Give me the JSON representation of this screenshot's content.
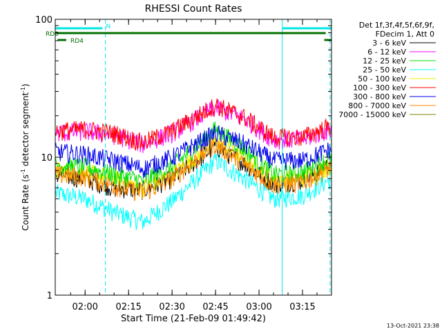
{
  "chart_data": {
    "type": "line",
    "title": "RHESSI Count Rates",
    "xlabel": "Start Time (21-Feb-09 01:49:42)",
    "ylabel": "Count Rate (s⁻¹ detector segment⁻¹)",
    "ylabel_parts": [
      "Count Rate (s",
      "-1",
      " detector segment",
      "-1",
      ")"
    ],
    "y_scale": "log",
    "ylim": [
      1,
      100
    ],
    "y_ticks": [
      {
        "value": 1,
        "label": "1"
      },
      {
        "value": 10,
        "label": "10"
      },
      {
        "value": 100,
        "label": "100"
      }
    ],
    "xlim": [
      "01:49:42",
      "03:25:00"
    ],
    "x_ticks": [
      "02:00",
      "02:15",
      "02:30",
      "02:45",
      "03:00",
      "03:15"
    ],
    "time_markers": {
      "solid": [
        "01:49:42",
        "03:08:00"
      ],
      "dashed": [
        "02:07:00",
        "03:24:30"
      ]
    },
    "flag_bars": [
      {
        "label": "N",
        "color": "#00e5e5",
        "intervals": [
          [
            "01:49:42",
            "02:06:00"
          ],
          [
            "03:08:00",
            "03:25:00"
          ]
        ]
      },
      {
        "label": "RD0",
        "color": "#007000",
        "intervals": [
          [
            "01:49:42",
            "03:23:00"
          ]
        ]
      },
      {
        "label": "RD4",
        "color": "#007000",
        "intervals": [
          [
            "01:50:30",
            "01:53:30"
          ],
          [
            "03:22:30",
            "03:25:00"
          ]
        ]
      }
    ],
    "legend": {
      "header": [
        "Det 1f,3f,4f,5f,6f,9f,",
        "FDecim 1, Att 0"
      ],
      "placement": "right"
    },
    "series": [
      {
        "name": "3 - 6 keV",
        "color": "#000000",
        "points": [
          [
            "01:50",
            7.5
          ],
          [
            "02:00",
            7.0
          ],
          [
            "02:10",
            6.0
          ],
          [
            "02:20",
            5.8
          ],
          [
            "02:30",
            7.0
          ],
          [
            "02:45",
            12.0
          ],
          [
            "02:55",
            9.0
          ],
          [
            "03:05",
            6.5
          ],
          [
            "03:15",
            6.8
          ],
          [
            "03:25",
            9.0
          ]
        ]
      },
      {
        "name": "6 - 12 keV",
        "color": "#ff00ff",
        "points": [
          [
            "01:50",
            15.0
          ],
          [
            "02:00",
            15.5
          ],
          [
            "02:10",
            14.5
          ],
          [
            "02:20",
            12.5
          ],
          [
            "02:30",
            15.0
          ],
          [
            "02:45",
            23.0
          ],
          [
            "02:55",
            19.0
          ],
          [
            "03:05",
            13.5
          ],
          [
            "03:15",
            13.5
          ],
          [
            "03:25",
            16.0
          ]
        ]
      },
      {
        "name": "12 - 25 keV",
        "color": "#00dd00",
        "points": [
          [
            "01:50",
            8.8
          ],
          [
            "02:00",
            8.5
          ],
          [
            "02:10",
            7.5
          ],
          [
            "02:20",
            6.8
          ],
          [
            "02:30",
            8.5
          ],
          [
            "02:45",
            16.0
          ],
          [
            "02:55",
            11.5
          ],
          [
            "03:05",
            7.5
          ],
          [
            "03:15",
            7.8
          ],
          [
            "03:25",
            10.0
          ]
        ]
      },
      {
        "name": "25 - 50 keV",
        "color": "#00ffff",
        "points": [
          [
            "01:50",
            5.5
          ],
          [
            "02:00",
            5.0
          ],
          [
            "02:10",
            4.0
          ],
          [
            "02:20",
            3.4
          ],
          [
            "02:30",
            4.8
          ],
          [
            "02:45",
            9.5
          ],
          [
            "02:55",
            7.0
          ],
          [
            "03:05",
            5.0
          ],
          [
            "03:15",
            5.3
          ],
          [
            "03:25",
            7.0
          ]
        ]
      },
      {
        "name": "50 - 100 keV",
        "color": "#f0f000",
        "points": [
          [
            "01:50",
            8.0
          ],
          [
            "02:00",
            7.8
          ],
          [
            "02:10",
            7.0
          ],
          [
            "02:20",
            6.0
          ],
          [
            "02:30",
            7.5
          ],
          [
            "02:45",
            13.0
          ],
          [
            "02:55",
            10.0
          ],
          [
            "03:05",
            7.0
          ],
          [
            "03:15",
            7.0
          ],
          [
            "03:25",
            8.8
          ]
        ]
      },
      {
        "name": "100 - 300 keV",
        "color": "#ff0000",
        "points": [
          [
            "01:50",
            15.5
          ],
          [
            "02:00",
            16.0
          ],
          [
            "02:10",
            15.0
          ],
          [
            "02:20",
            12.8
          ],
          [
            "02:30",
            15.5
          ],
          [
            "02:45",
            24.0
          ],
          [
            "02:55",
            19.5
          ],
          [
            "03:05",
            14.0
          ],
          [
            "03:15",
            14.0
          ],
          [
            "03:25",
            17.0
          ]
        ]
      },
      {
        "name": "300 - 800 keV",
        "color": "#0000ee",
        "points": [
          [
            "01:50",
            11.0
          ],
          [
            "02:00",
            10.5
          ],
          [
            "02:10",
            9.5
          ],
          [
            "02:20",
            8.3
          ],
          [
            "02:30",
            10.0
          ],
          [
            "02:45",
            15.0
          ],
          [
            "02:55",
            12.5
          ],
          [
            "03:05",
            9.5
          ],
          [
            "03:15",
            9.5
          ],
          [
            "03:25",
            11.5
          ]
        ]
      },
      {
        "name": "800 - 7000 keV",
        "color": "#ff8800",
        "points": [
          [
            "01:50",
            7.5
          ],
          [
            "02:00",
            7.2
          ],
          [
            "02:10",
            6.2
          ],
          [
            "02:20",
            5.5
          ],
          [
            "02:30",
            7.0
          ],
          [
            "02:45",
            12.5
          ],
          [
            "02:55",
            8.8
          ],
          [
            "03:05",
            6.3
          ],
          [
            "03:15",
            6.5
          ],
          [
            "03:25",
            8.5
          ]
        ]
      },
      {
        "name": "7000 - 15000 keV",
        "color": "#808000",
        "points": []
      }
    ],
    "footer_timestamp": "13-Oct-2021 23:38"
  }
}
